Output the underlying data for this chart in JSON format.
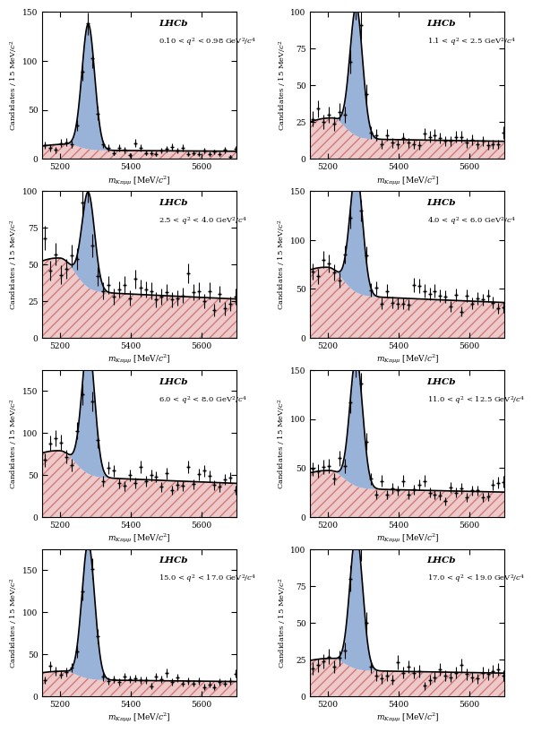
{
  "panels": [
    {
      "q2_label": "0.10 < $q^{2}$ < 0.98 GeV$^{2}$/$c^{4}$",
      "ymax": 150,
      "yticks": [
        0,
        50,
        100,
        150
      ],
      "signal_amp": 128,
      "signal_sigma": 18,
      "signal_mean": 5280,
      "bkg_amp": 9,
      "bkg_slope": -0.0003,
      "partial_amp": 6,
      "partial_sigma": 80,
      "partial_mean": 5220
    },
    {
      "q2_label": "1.1 < $q^{2}$ < 2.5 GeV$^{2}$/$c^{4}$",
      "ymax": 100,
      "yticks": [
        0,
        25,
        50,
        75,
        100
      ],
      "signal_amp": 88,
      "signal_sigma": 18,
      "signal_mean": 5280,
      "bkg_amp": 14,
      "bkg_slope": -0.0003,
      "partial_amp": 14,
      "partial_sigma": 90,
      "partial_mean": 5210
    },
    {
      "q2_label": "2.5 < $q^{2}$ < 4.0 GeV$^{2}$/$c^{4}$",
      "ymax": 100,
      "yticks": [
        0,
        25,
        50,
        75,
        100
      ],
      "signal_amp": 65,
      "signal_sigma": 18,
      "signal_mean": 5280,
      "bkg_amp": 33,
      "bkg_slope": -0.0004,
      "partial_amp": 22,
      "partial_sigma": 100,
      "partial_mean": 5200
    },
    {
      "q2_label": "4.0 < $q^{2}$ < 6.0 GeV$^{2}$/$c^{4}$",
      "ymax": 150,
      "yticks": [
        0,
        50,
        100,
        150
      ],
      "signal_amp": 125,
      "signal_sigma": 18,
      "signal_mean": 5280,
      "bkg_amp": 45,
      "bkg_slope": -0.0004,
      "partial_amp": 28,
      "partial_sigma": 100,
      "partial_mean": 5200
    },
    {
      "q2_label": "6.0 < $q^{2}$ < 8.0 GeV$^{2}$/$c^{4}$",
      "ymax": 175,
      "yticks": [
        0,
        50,
        100,
        150
      ],
      "signal_amp": 158,
      "signal_sigma": 18,
      "signal_mean": 5280,
      "bkg_amp": 50,
      "bkg_slope": -0.0004,
      "partial_amp": 30,
      "partial_sigma": 100,
      "partial_mean": 5200
    },
    {
      "q2_label": "11.0 < $q^{2}$ < 12.5 GeV$^{2}$/$c^{4}$",
      "ymax": 150,
      "yticks": [
        0,
        50,
        100,
        150
      ],
      "signal_amp": 132,
      "signal_sigma": 18,
      "signal_mean": 5280,
      "bkg_amp": 30,
      "bkg_slope": -0.0003,
      "partial_amp": 18,
      "partial_sigma": 95,
      "partial_mean": 5205
    },
    {
      "q2_label": "15.0 < $q^{2}$ < 17.0 GeV$^{2}$/$c^{4}$",
      "ymax": 175,
      "yticks": [
        0,
        50,
        100,
        150
      ],
      "signal_amp": 162,
      "signal_sigma": 18,
      "signal_mean": 5280,
      "bkg_amp": 20,
      "bkg_slope": -0.00025,
      "partial_amp": 10,
      "partial_sigma": 90,
      "partial_mean": 5210
    },
    {
      "q2_label": "17.0 < $q^{2}$ < 19.0 GeV$^{2}$/$c^{4}$",
      "ymax": 100,
      "yticks": [
        0,
        25,
        50,
        75,
        100
      ],
      "signal_amp": 93,
      "signal_sigma": 18,
      "signal_mean": 5280,
      "bkg_amp": 18,
      "bkg_slope": -0.00025,
      "partial_amp": 8,
      "partial_sigma": 88,
      "partial_mean": 5210
    }
  ],
  "xmin": 5150,
  "xmax": 5700,
  "xticks": [
    5200,
    5400,
    5600
  ],
  "signal_color": "#7799cc",
  "partial_color": "#cc6666",
  "total_color": "black",
  "data_color": "black",
  "xlabel_base": "$m_{K\\pi\\mu\\mu}$ [MeV/$c^{2}$]",
  "ylabel": "Candidates / 15 MeV/$c^{2}$",
  "lhcb_label": "LHCb",
  "fig_width": 6.07,
  "fig_height": 8.3
}
